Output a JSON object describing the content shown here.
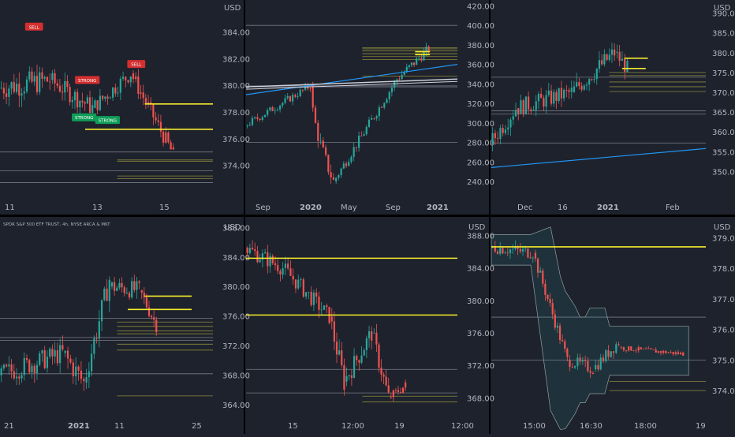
{
  "colors": {
    "bg": "#1e222d",
    "separator": "#000000",
    "up": "#26a69a",
    "down": "#ef5350",
    "grid": "#2a2e39",
    "text": "#b2b5be",
    "level_gray": "#787b86",
    "level_olive": "#8b8a3a",
    "yellow": "#f5eb2b",
    "blue": "#2196f3",
    "white_line": "#d1d4dc",
    "purple": "#9c6bc9",
    "green": "#4caf50",
    "signal_green": "#0f9d58",
    "signal_red": "#d32f2f",
    "bollinger": "#8fa1a0"
  },
  "chart_data": [
    {
      "id": "p1",
      "type": "candlestick",
      "grid_lines": "off",
      "currency": "USD",
      "y_labels": [
        "384.00",
        "382.00",
        "380.00",
        "378.00",
        "376.00",
        "374.00"
      ],
      "ylim": [
        372.2,
        386.4
      ],
      "x_labels": [
        "11",
        "13",
        "15"
      ],
      "signals": [
        {
          "text": "SELL",
          "kind": "sell",
          "x": 0.16,
          "y": 384.4
        },
        {
          "text": "STRONG",
          "kind": "sell",
          "x": 0.41,
          "y": 380.4
        },
        {
          "text": "SELL",
          "kind": "sell",
          "x": 0.64,
          "y": 381.6
        },
        {
          "text": "STRONG",
          "kind": "buy",
          "x": 0.395,
          "y": 377.6
        },
        {
          "text": "STRONG",
          "kind": "buy",
          "x": 0.505,
          "y": 377.4
        }
      ],
      "yellow_lines": [
        {
          "y": 378.6,
          "x0": 0.68,
          "x1": 1.0
        },
        {
          "y": 376.7,
          "x0": 0.4,
          "x1": 1.0
        }
      ],
      "gray_lines": [
        373.6,
        372.7,
        375.0
      ],
      "olive_lines": [
        374.4,
        374.3,
        373.2,
        373.0
      ],
      "series": [
        {
          "start_x": 0.0,
          "end_x": 0.24,
          "start": 379.8,
          "end": 380.4,
          "vol": 0.9,
          "shape": "up",
          "color": "mixed"
        },
        {
          "start_x": 0.24,
          "end_x": 0.44,
          "start": 380.4,
          "end": 378.3,
          "vol": 0.7,
          "shape": "down",
          "color": "mixed"
        },
        {
          "start_x": 0.44,
          "end_x": 0.62,
          "start": 378.3,
          "end": 380.9,
          "vol": 0.6,
          "shape": "up",
          "color": "mixed"
        },
        {
          "start_x": 0.62,
          "end_x": 0.82,
          "start": 380.9,
          "end": 374.8,
          "vol": 0.6,
          "shape": "down",
          "color": "red"
        }
      ]
    },
    {
      "id": "p2",
      "type": "candlestick",
      "grid_lines": "off",
      "y_labels": [
        "420.00",
        "400.00",
        "380.00",
        "360.00",
        "340.00",
        "320.00",
        "300.00",
        "280.00",
        "260.00",
        "240.00"
      ],
      "ylim": [
        232,
        426
      ],
      "x_labels": [
        "Sep",
        "2020",
        "May",
        "Sep",
        "2021"
      ],
      "yellow_lines": [
        {
          "y": 373,
          "x0": 0.8,
          "x1": 0.87
        },
        {
          "y": 370,
          "x0": 0.8,
          "x1": 0.87
        }
      ],
      "blue_lines": [
        {
          "y0": 329,
          "y1": 360,
          "x0": 0.0,
          "x1": 1.0
        }
      ],
      "white_lines": [
        {
          "y0": 337,
          "y1": 345,
          "x0": 0.0,
          "x1": 1.0
        }
      ],
      "gray_lines": [
        400,
        280,
        338,
        337
      ],
      "olive_lines": [
        377,
        376,
        374,
        371,
        368,
        365,
        348
      ],
      "series": [
        {
          "start_x": 0.0,
          "end_x": 0.31,
          "start": 297,
          "end": 338,
          "vol": 4,
          "shape": "up",
          "color": "mixed"
        },
        {
          "start_x": 0.31,
          "end_x": 0.42,
          "start": 338,
          "end": 240,
          "vol": 8,
          "shape": "crash",
          "color": "mixed"
        },
        {
          "start_x": 0.42,
          "end_x": 0.72,
          "start": 240,
          "end": 345,
          "vol": 5,
          "shape": "up",
          "color": "mixed"
        },
        {
          "start_x": 0.72,
          "end_x": 0.87,
          "start": 345,
          "end": 376,
          "vol": 5,
          "shape": "up",
          "color": "mixed"
        }
      ]
    },
    {
      "id": "p3",
      "type": "candlestick",
      "grid_lines": "off",
      "currency": "USD",
      "y_labels": [
        "390.00",
        "385.00",
        "380.00",
        "375.00",
        "370.00",
        "365.00",
        "360.00",
        "355.00",
        "350.00"
      ],
      "ylim": [
        345.5,
        393.3
      ],
      "x_labels": [
        "Dec",
        "16",
        "2021",
        "Feb"
      ],
      "yellow_lines": [
        {
          "y": 378.6,
          "x0": 0.62,
          "x1": 0.73
        },
        {
          "y": 376.0,
          "x0": 0.61,
          "x1": 0.72
        }
      ],
      "blue_lines": [
        {
          "y0": 351,
          "y1": 355.8,
          "x0": 0.0,
          "x1": 1.0
        }
      ],
      "gray_lines": [
        373.8,
        364.5,
        365.3,
        357.2
      ],
      "olive_lines": [
        375.0,
        374.2,
        372.6,
        371.4,
        370.2
      ],
      "series": [
        {
          "start_x": 0.0,
          "end_x": 0.12,
          "start": 357,
          "end": 366,
          "vol": 2.2,
          "shape": "up",
          "color": "mixed"
        },
        {
          "start_x": 0.12,
          "end_x": 0.38,
          "start": 366,
          "end": 370,
          "vol": 2.2,
          "shape": "up",
          "color": "mixed"
        },
        {
          "start_x": 0.38,
          "end_x": 0.58,
          "start": 370,
          "end": 380,
          "vol": 2.4,
          "shape": "up",
          "color": "mixed"
        },
        {
          "start_x": 0.58,
          "end_x": 0.64,
          "start": 380,
          "end": 376,
          "vol": 2.0,
          "shape": "down",
          "color": "mixed"
        }
      ]
    },
    {
      "id": "p4",
      "type": "candlestick",
      "grid_lines": "off",
      "title": "SPDR S&P 500 ETF TRUST, 4h, NYSE ARCA & MKT",
      "currency": "USD",
      "y_labels": [
        "388.00",
        "384.00",
        "380.00",
        "376.00",
        "372.00",
        "368.00",
        "364.00"
      ],
      "ylim": [
        362.2,
        389.1
      ],
      "x_labels": [
        "21",
        "2021",
        "11",
        "25"
      ],
      "yellow_lines": [
        {
          "y": 378.7,
          "x0": 0.68,
          "x1": 0.9
        },
        {
          "y": 376.9,
          "x0": 0.6,
          "x1": 0.9
        }
      ],
      "gray_lines": [
        375.7,
        373.1,
        372.7,
        368.2
      ],
      "olive_lines": [
        375.2,
        374.6,
        374.0,
        373.6,
        372.2,
        371.4,
        365.2
      ],
      "series": [
        {
          "start_x": 0.0,
          "end_x": 0.3,
          "start": 368,
          "end": 371,
          "vol": 1.4,
          "shape": "up",
          "color": "mixed"
        },
        {
          "start_x": 0.3,
          "end_x": 0.4,
          "start": 371,
          "end": 367,
          "vol": 1.6,
          "shape": "down",
          "color": "mixed"
        },
        {
          "start_x": 0.4,
          "end_x": 0.52,
          "start": 367,
          "end": 381,
          "vol": 1.6,
          "shape": "up",
          "color": "mixed"
        },
        {
          "start_x": 0.52,
          "end_x": 0.66,
          "start": 380,
          "end": 379.5,
          "vol": 1.2,
          "shape": "flat",
          "color": "mixed"
        },
        {
          "start_x": 0.66,
          "end_x": 0.74,
          "start": 379.5,
          "end": 374.8,
          "vol": 1.0,
          "shape": "down",
          "color": "red"
        }
      ]
    },
    {
      "id": "p5",
      "type": "candlestick",
      "grid_lines": "off",
      "currency": "USD",
      "y_labels": [
        "388.00",
        "384.00",
        "380.00",
        "376.00",
        "372.00",
        "368.00"
      ],
      "ylim": [
        365.5,
        390.0
      ],
      "x_labels": [
        "15",
        "12:00",
        "19",
        "12:00"
      ],
      "yellow_lines": [
        {
          "y": 385.2,
          "x0": 0.0,
          "x1": 1.0
        },
        {
          "y": 378.2,
          "x0": 0.0,
          "x1": 1.0
        }
      ],
      "gray_lines": [
        371.5,
        368.6
      ],
      "olive_lines": [
        368.2,
        367.5
      ],
      "series": [
        {
          "start_x": 0.0,
          "end_x": 0.18,
          "start": 386.5,
          "end": 384,
          "vol": 1.0,
          "shape": "flat",
          "color": "mixed"
        },
        {
          "start_x": 0.18,
          "end_x": 0.4,
          "start": 384,
          "end": 378,
          "vol": 1.0,
          "shape": "down",
          "color": "mixed"
        },
        {
          "start_x": 0.4,
          "end_x": 0.47,
          "start": 378,
          "end": 370,
          "vol": 1.4,
          "shape": "down",
          "color": "mixed"
        },
        {
          "start_x": 0.47,
          "end_x": 0.6,
          "start": 370,
          "end": 376,
          "vol": 1.2,
          "shape": "up",
          "color": "mixed"
        },
        {
          "start_x": 0.6,
          "end_x": 0.68,
          "start": 376,
          "end": 368,
          "vol": 1.2,
          "shape": "down",
          "color": "mixed"
        },
        {
          "start_x": 0.68,
          "end_x": 0.76,
          "start": 368,
          "end": 369.5,
          "vol": 0.6,
          "shape": "flat",
          "color": "red"
        }
      ]
    },
    {
      "id": "p6",
      "type": "candlestick",
      "grid_lines": "off",
      "currency": "USD",
      "y_labels": [
        "379.00",
        "378.00",
        "377.00",
        "376.00",
        "375.00",
        "374.00"
      ],
      "ylim": [
        373.1,
        379.6
      ],
      "x_labels": [
        "15:00",
        "16:30",
        "18:00",
        "19"
      ],
      "yellow_lines": [
        {
          "y": 378.7,
          "x0": 0.0,
          "x1": 1.0
        }
      ],
      "gray_lines": [
        376.4,
        375.0
      ],
      "olive_lines": [
        374.3,
        374.0
      ],
      "series": [
        {
          "start_x": 0.0,
          "end_x": 0.2,
          "start": 378.7,
          "end": 378.5,
          "vol": 0.2,
          "shape": "flat",
          "color": "mixed"
        },
        {
          "start_x": 0.2,
          "end_x": 0.36,
          "start": 378.5,
          "end": 375.0,
          "vol": 0.2,
          "shape": "down",
          "color": "mixed"
        },
        {
          "start_x": 0.36,
          "end_x": 0.48,
          "start": 375.0,
          "end": 374.7,
          "vol": 0.2,
          "shape": "flat",
          "color": "mixed"
        },
        {
          "start_x": 0.48,
          "end_x": 0.6,
          "start": 374.7,
          "end": 375.6,
          "vol": 0.2,
          "shape": "up",
          "color": "mixed"
        },
        {
          "start_x": 0.6,
          "end_x": 0.9,
          "start": 375.4,
          "end": 375.2,
          "vol": 0.08,
          "shape": "flat",
          "color": "red"
        }
      ],
      "bollinger": true
    }
  ]
}
